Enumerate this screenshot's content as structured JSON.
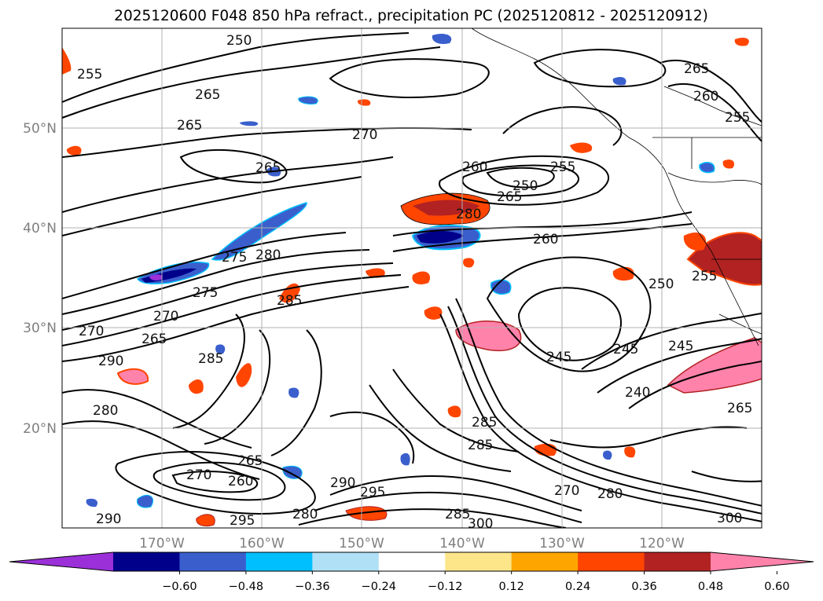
{
  "title": "2025120600 F048 850 hPa refract., precipitation PC (2025120812 - 2025120912)",
  "chart_data": {
    "type": "map-contour",
    "title": "2025120600 F048 850 hPa refract., precipitation PC (2025120812 - 2025120912)",
    "lon_range": [
      -180,
      -110
    ],
    "lat_range": [
      10,
      60
    ],
    "x_ticks": [
      "170°W",
      "160°W",
      "150°W",
      "140°W",
      "130°W",
      "120°W"
    ],
    "y_ticks": [
      "20°N",
      "30°N",
      "40°N",
      "50°N"
    ],
    "grid": true,
    "colorbar": {
      "orientation": "horizontal",
      "extend": "both",
      "ticks": [
        "−0.60",
        "−0.48",
        "−0.36",
        "−0.24",
        "−0.12",
        "0.12",
        "0.24",
        "0.36",
        "0.48",
        "0.60"
      ],
      "colors": [
        "#9b30d9",
        "#00008b",
        "#3a5fcd",
        "#00bfff",
        "#afe0f5",
        "#ffffff",
        "#fde68a",
        "#ffa500",
        "#ff4500",
        "#b22222",
        "#ff82ab"
      ]
    },
    "contour_labels": [
      "250",
      "255",
      "260",
      "265",
      "270",
      "275",
      "280",
      "285",
      "290",
      "295",
      "300",
      "245",
      "240"
    ]
  }
}
